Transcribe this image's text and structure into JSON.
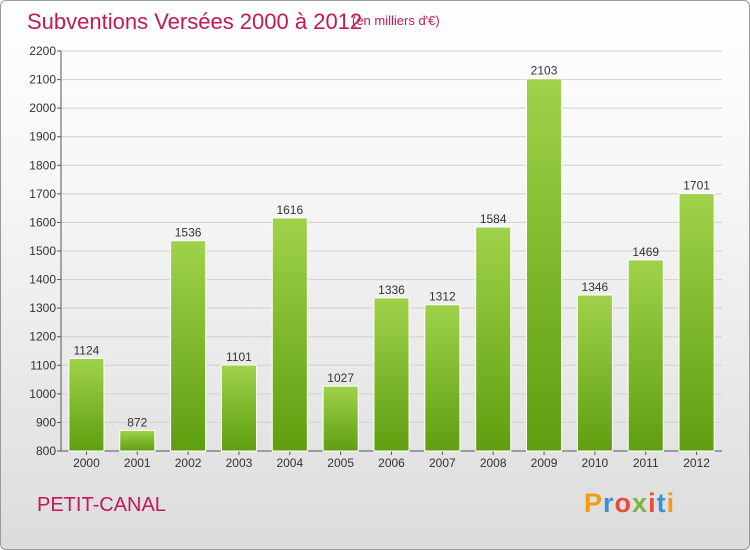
{
  "header": {
    "title": "Subventions Versées 2000 à 2012",
    "unit_note": "(en milliers d'€)"
  },
  "footer": {
    "place_name": "PETIT-CANAL",
    "logo_text": "Proxiti",
    "logo_colors": [
      "#f39c12",
      "#3a8fd6",
      "#e74c3c",
      "#7cb342",
      "#e74c3c",
      "#3a8fd6",
      "#f39c12"
    ]
  },
  "colors": {
    "title": "#c2185b",
    "bar_top": "#9fd24a",
    "bar_bottom": "#5f9e10",
    "grid": "#d0d0d0"
  },
  "chart_data": {
    "type": "bar",
    "title": "Subventions Versées 2000 à 2012",
    "subtitle": "(en milliers d'€)",
    "xlabel": "",
    "ylabel": "",
    "categories": [
      "2000",
      "2001",
      "2002",
      "2003",
      "2004",
      "2005",
      "2006",
      "2007",
      "2008",
      "2009",
      "2010",
      "2011",
      "2012"
    ],
    "values": [
      1124,
      872,
      1536,
      1101,
      1616,
      1027,
      1336,
      1312,
      1584,
      2103,
      1346,
      1469,
      1701
    ],
    "data_labels": [
      "1124",
      "872",
      "1536",
      "1101",
      "1616",
      "1027",
      "1336",
      "1312",
      "1584",
      "2103",
      "1346",
      "1469",
      "1701"
    ],
    "ylim": [
      800,
      2200
    ],
    "yticks": [
      800,
      900,
      1000,
      1100,
      1200,
      1300,
      1400,
      1500,
      1600,
      1700,
      1800,
      1900,
      2000,
      2100,
      2200
    ],
    "grid": true,
    "legend": "none"
  }
}
